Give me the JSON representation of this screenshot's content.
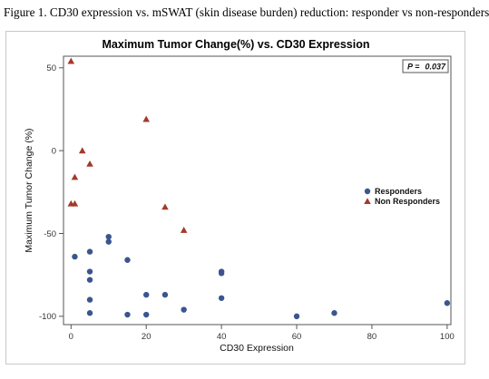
{
  "figure": {
    "caption": "Figure 1. CD30 expression vs. mSWAT (skin disease burden) reduction: responder vs non-responders"
  },
  "chart_data": {
    "type": "scatter",
    "title": "Maximum Tumor Change(%) vs. CD30 Expression",
    "xlabel": "CD30 Expression",
    "ylabel": "Maximum Tumor Change (%)",
    "xlim": [
      -2,
      101
    ],
    "ylim": [
      -105,
      57
    ],
    "xticks": [
      0,
      20,
      40,
      60,
      80,
      100
    ],
    "yticks": [
      50,
      0,
      -50,
      -100
    ],
    "xtick_labels": [
      "0",
      "20",
      "40",
      "60",
      "80",
      "100"
    ],
    "ytick_labels": [
      "50",
      "0",
      "-50",
      "-100"
    ],
    "grid": false,
    "legend_position": "right",
    "annotation": {
      "label": "P =",
      "value": "0.037"
    },
    "series": [
      {
        "name": "Responders",
        "marker": "circle",
        "color": "#3b5590",
        "points": [
          [
            1,
            -64
          ],
          [
            5,
            -61
          ],
          [
            5,
            -73
          ],
          [
            5,
            -78
          ],
          [
            5,
            -90
          ],
          [
            5,
            -98
          ],
          [
            10,
            -52
          ],
          [
            10,
            -55
          ],
          [
            15,
            -66
          ],
          [
            15,
            -99
          ],
          [
            20,
            -87
          ],
          [
            20,
            -99
          ],
          [
            25,
            -87
          ],
          [
            30,
            -96
          ],
          [
            40,
            -73
          ],
          [
            40,
            -74
          ],
          [
            40,
            -89
          ],
          [
            60,
            -100
          ],
          [
            70,
            -98
          ],
          [
            100,
            -92
          ]
        ]
      },
      {
        "name": "Non Responders",
        "marker": "triangle",
        "color": "#a23a2a",
        "points": [
          [
            0,
            54
          ],
          [
            0,
            -32
          ],
          [
            1,
            -32
          ],
          [
            1,
            -16
          ],
          [
            3,
            0
          ],
          [
            5,
            -8
          ],
          [
            20,
            19
          ],
          [
            25,
            -34
          ],
          [
            30,
            -48
          ]
        ]
      }
    ]
  }
}
